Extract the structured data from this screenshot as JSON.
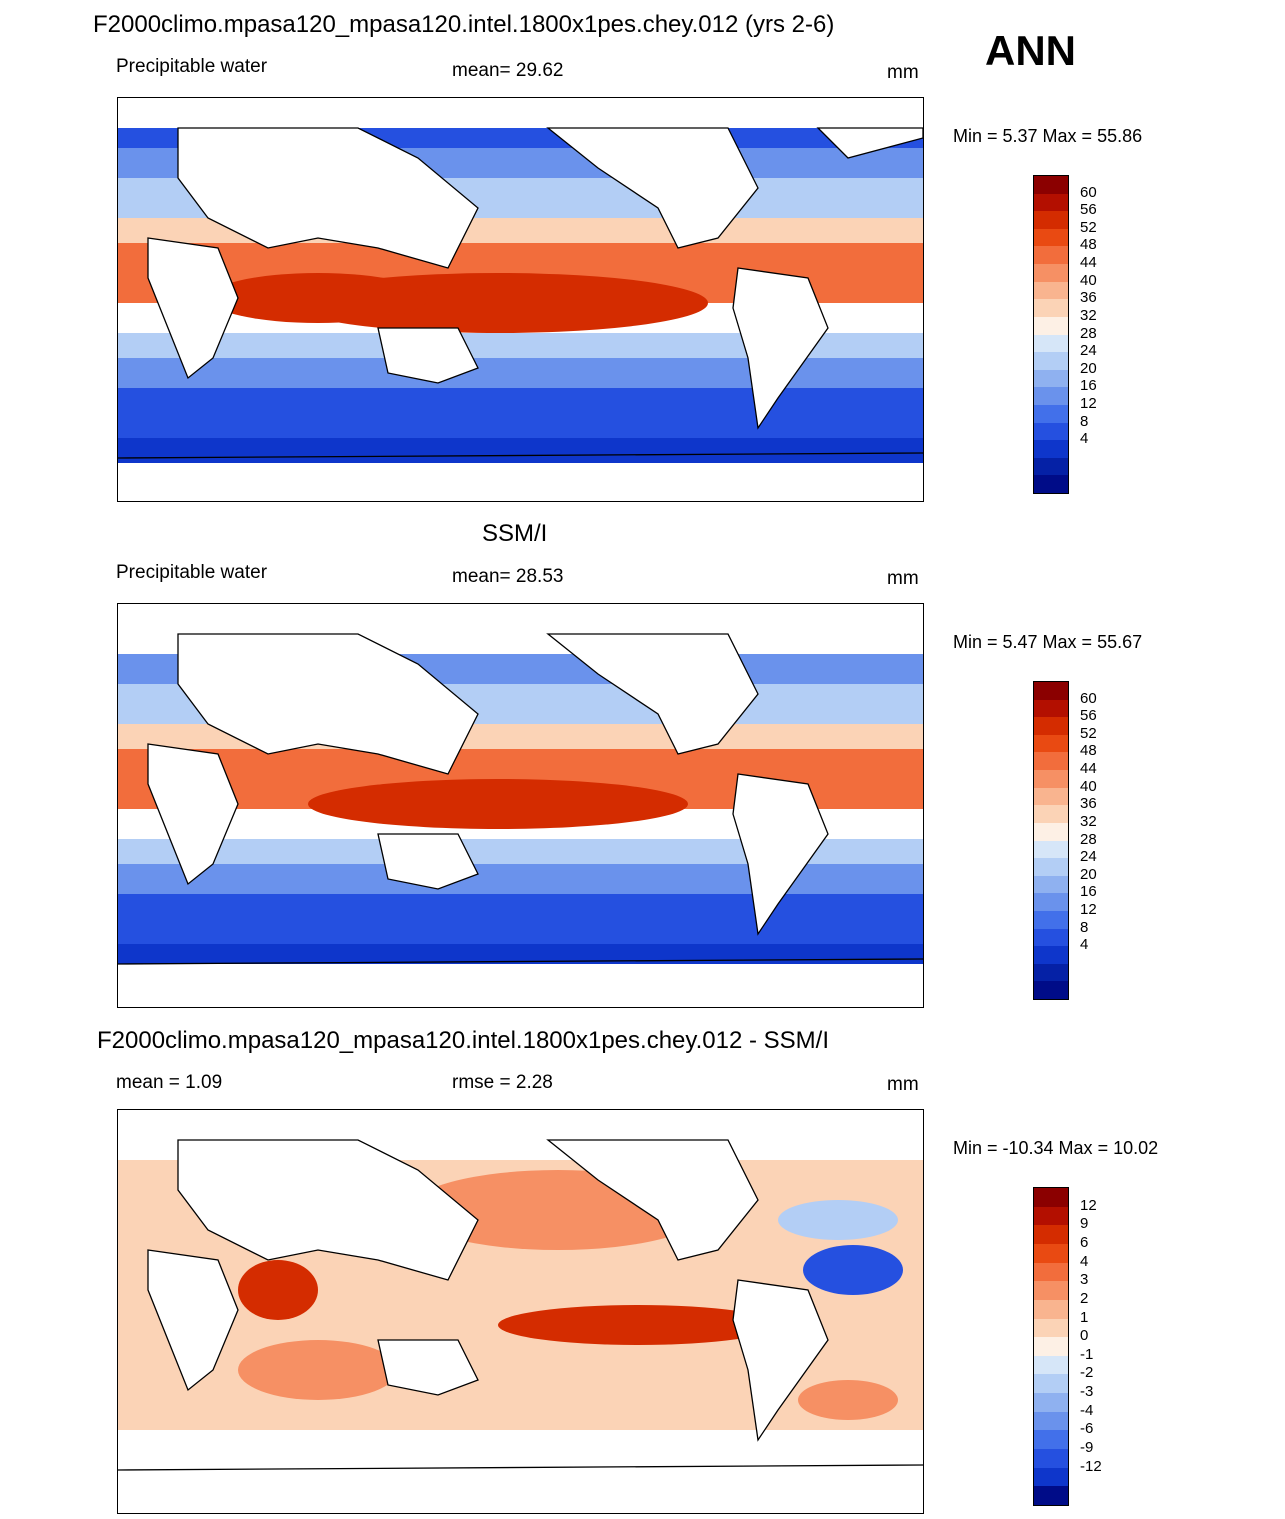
{
  "season": "ANN",
  "panels": [
    {
      "id": "model",
      "title": "F2000climo.mpasa120_mpasa120.intel.1800x1pes.chey.012 (yrs 2-6)",
      "variable": "Precipitable water",
      "stat": "mean=  29.62",
      "units": "mm",
      "minmax": "Min =   5.37 Max =  55.86"
    },
    {
      "id": "obs",
      "title": "SSM/I",
      "variable": "Precipitable water",
      "stat": "mean=  28.53",
      "units": "mm",
      "minmax": "Min =   5.47 Max =  55.67"
    },
    {
      "id": "diff",
      "title": "F2000climo.mpasa120_mpasa120.intel.1800x1pes.chey.012 - SSM/I",
      "stat_left": "mean =    1.09",
      "stat_center": "rmse =    2.28",
      "units": "mm",
      "minmax": "Min = -10.34 Max =  10.02"
    }
  ],
  "colorbars": {
    "field": {
      "labels": [
        "60",
        "56",
        "52",
        "48",
        "44",
        "40",
        "36",
        "32",
        "28",
        "24",
        "20",
        "16",
        "12",
        "8",
        "4"
      ],
      "colors": [
        "#8b0000",
        "#b30f00",
        "#d42c00",
        "#e94a12",
        "#f26d3c",
        "#f69064",
        "#f9b48f",
        "#fbd3b6",
        "#fdf0e5",
        "#d6e6f8",
        "#b3cef5",
        "#8fb1f0",
        "#6a92ec",
        "#4270ea",
        "#2550e0",
        "#0e36cb",
        "#0521a6",
        "#000c88"
      ]
    },
    "diff": {
      "labels": [
        "12",
        "9",
        "6",
        "4",
        "3",
        "2",
        "1",
        "0",
        "-1",
        "-2",
        "-3",
        "-4",
        "-6",
        "-9",
        "-12"
      ],
      "colors": [
        "#8b0000",
        "#b30f00",
        "#d42c00",
        "#e94a12",
        "#f26d3c",
        "#f69064",
        "#f9b48f",
        "#fbd3b6",
        "#fdf0e5",
        "#d6e6f8",
        "#b3cef5",
        "#8fb1f0",
        "#6a92ec",
        "#4270ea",
        "#2550e0",
        "#0e36cb",
        "#000c88"
      ]
    }
  }
}
